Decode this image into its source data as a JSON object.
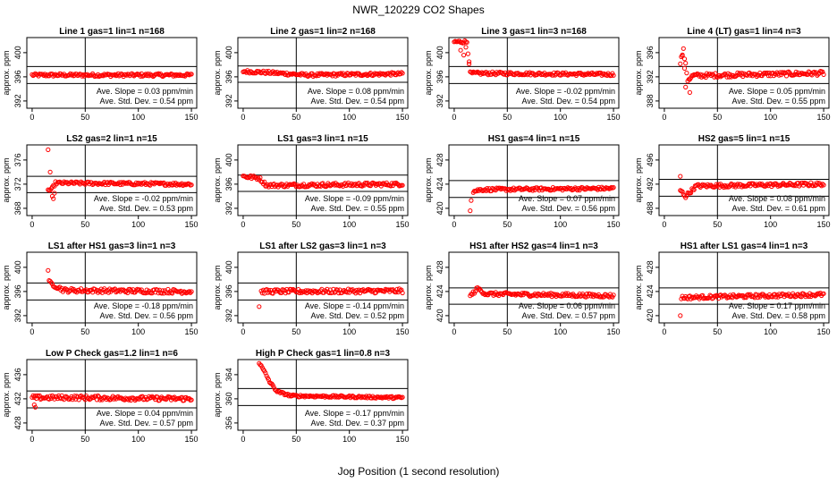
{
  "title": "NWR_120229  CO2 Shapes",
  "xlabel": "Jog Position (1 second resolution)",
  "colors": {
    "points": "#ff0000",
    "axes": "#000000"
  },
  "chart_data": [
    {
      "type": "scatter",
      "title": "Line 1 gas=1 lin=1 n=168",
      "ylabel": "approx. ppm",
      "xlim": [
        -5,
        155
      ],
      "xticks": [
        0,
        50,
        100,
        150
      ],
      "ylim": [
        390.8,
        402.5
      ],
      "yticks": [
        392,
        396,
        400
      ],
      "hlines": [
        397.7,
        394.9
      ],
      "vline": 50,
      "slope": "Ave. Slope = 0.03  ppm/min",
      "stddev": "Ave. Std. Dev. = 0.54  ppm",
      "series": [
        {
          "x_start": 0,
          "x_end": 150,
          "segments": [
            [
              0,
              396.3
            ],
            [
              150,
              396.3
            ]
          ],
          "jitter": 0.25,
          "spikes": []
        }
      ]
    },
    {
      "type": "scatter",
      "title": "Line 2 gas=1 lin=2 n=168",
      "ylabel": "approx. ppm",
      "xlim": [
        -5,
        155
      ],
      "xticks": [
        0,
        50,
        100,
        150
      ],
      "ylim": [
        390.8,
        402.5
      ],
      "yticks": [
        392,
        396,
        400
      ],
      "hlines": [
        397.8,
        395.1
      ],
      "vline": 50,
      "slope": "Ave. Slope = 0.08  ppm/min",
      "stddev": "Ave. Std. Dev. = 0.54  ppm",
      "series": [
        {
          "x_start": 0,
          "x_end": 150,
          "segments": [
            [
              0,
              396.9
            ],
            [
              25,
              396.7
            ],
            [
              60,
              396.3
            ],
            [
              150,
              396.5
            ]
          ],
          "jitter": 0.25,
          "spikes": []
        }
      ]
    },
    {
      "type": "scatter",
      "title": "Line 3 gas=1 lin=3 n=168",
      "ylabel": "approx. ppm",
      "xlim": [
        -5,
        155
      ],
      "xticks": [
        0,
        50,
        100,
        150
      ],
      "ylim": [
        390.8,
        402.5
      ],
      "yticks": [
        392,
        396,
        400
      ],
      "hlines": [
        397.7,
        394.9
      ],
      "vline": 50,
      "slope": "Ave. Slope = -0.02  ppm/min",
      "stddev": "Ave. Std. Dev. = 0.54  ppm",
      "series": [
        {
          "x_start": 0,
          "x_end": 150,
          "segments": [
            [
              0,
              401.8
            ],
            [
              12,
              401.8
            ],
            [
              15,
              396.6
            ],
            [
              150,
              396.4
            ]
          ],
          "jitter": 0.25,
          "spikes": [
            [
              6,
              400.4
            ],
            [
              9,
              399.6
            ],
            [
              11,
              400.9
            ],
            [
              14,
              398.5
            ]
          ]
        }
      ]
    },
    {
      "type": "scatter",
      "title": "Line 4 (LT) gas=1 lin=4 n=3",
      "ylabel": "approx. ppm",
      "xlim": [
        -5,
        155
      ],
      "xticks": [
        0,
        50,
        100,
        150
      ],
      "ylim": [
        386.8,
        398.5
      ],
      "yticks": [
        388,
        392,
        396
      ],
      "hlines": [
        393.7,
        390.9
      ],
      "vline": 50,
      "slope": "Ave. Slope = 0.05  ppm/min",
      "stddev": "Ave. Std. Dev. = 0.55  ppm",
      "series": [
        {
          "x_start": 15,
          "x_end": 150,
          "segments": [
            [
              15,
              394.5
            ],
            [
              18,
              396.4
            ],
            [
              22,
              391.5
            ],
            [
              27,
              392.2
            ],
            [
              150,
              392.6
            ]
          ],
          "jitter": 0.35,
          "spikes": [
            [
              20,
              390.3
            ],
            [
              24,
              389.4
            ],
            [
              17,
              395.5
            ],
            [
              19,
              393.4
            ]
          ]
        }
      ]
    },
    {
      "type": "scatter",
      "title": "LS2 gas=2 lin=1 n=15",
      "ylabel": "approx. ppm",
      "xlim": [
        -5,
        155
      ],
      "xticks": [
        0,
        50,
        100,
        150
      ],
      "ylim": [
        366.8,
        378.5
      ],
      "yticks": [
        368,
        372,
        376
      ],
      "hlines": [
        373.3,
        370.6
      ],
      "vline": 50,
      "slope": "Ave. Slope = -0.02  ppm/min",
      "stddev": "Ave. Std. Dev. = 0.53  ppm",
      "series": [
        {
          "x_start": 15,
          "x_end": 150,
          "segments": [
            [
              18,
              371.0
            ],
            [
              22,
              372.2
            ],
            [
              150,
              372.0
            ]
          ],
          "jitter": 0.25,
          "spikes": [
            [
              15,
              377.7
            ],
            [
              17,
              374.0
            ],
            [
              19,
              370.0
            ],
            [
              20,
              369.6
            ],
            [
              21,
              370.5
            ]
          ]
        }
      ]
    },
    {
      "type": "scatter",
      "title": "LS1 gas=3 lin=1 n=15",
      "ylabel": "approx. ppm",
      "xlim": [
        -5,
        155
      ],
      "xticks": [
        0,
        50,
        100,
        150
      ],
      "ylim": [
        390.8,
        402.5
      ],
      "yticks": [
        392,
        396,
        400
      ],
      "hlines": [
        397.5,
        394.8
      ],
      "vline": 50,
      "slope": "Ave. Slope = -0.09  ppm/min",
      "stddev": "Ave. Std. Dev. = 0.55  ppm",
      "series": [
        {
          "x_start": 0,
          "x_end": 150,
          "segments": [
            [
              0,
              397.3
            ],
            [
              15,
              397.0
            ],
            [
              22,
              395.8
            ],
            [
              150,
              396.0
            ]
          ],
          "jitter": 0.3,
          "spikes": []
        }
      ]
    },
    {
      "type": "scatter",
      "title": "HS1 gas=4 lin=1 n=15",
      "ylabel": "approx. ppm",
      "xlim": [
        -5,
        155
      ],
      "xticks": [
        0,
        50,
        100,
        150
      ],
      "ylim": [
        418.8,
        430.5
      ],
      "yticks": [
        420,
        424,
        428
      ],
      "hlines": [
        424.6,
        421.8
      ],
      "vline": 50,
      "slope": "Ave. Slope = 0.07  ppm/min",
      "stddev": "Ave. Std. Dev. = 0.56  ppm",
      "series": [
        {
          "x_start": 18,
          "x_end": 150,
          "segments": [
            [
              18,
              422.8
            ],
            [
              25,
              423.1
            ],
            [
              150,
              423.3
            ]
          ],
          "jitter": 0.25,
          "spikes": [
            [
              15,
              419.6
            ],
            [
              16,
              421.3
            ]
          ]
        }
      ]
    },
    {
      "type": "scatter",
      "title": "HS2 gas=5 lin=1 n=15",
      "ylabel": "approx. ppm",
      "xlim": [
        -5,
        155
      ],
      "xticks": [
        0,
        50,
        100,
        150
      ],
      "ylim": [
        486.8,
        498.5
      ],
      "yticks": [
        488,
        492,
        496
      ],
      "hlines": [
        492.8,
        490.0
      ],
      "vline": 50,
      "slope": "Ave. Slope = 0.08  ppm/min",
      "stddev": "Ave. Std. Dev. = 0.61  ppm",
      "series": [
        {
          "x_start": 15,
          "x_end": 150,
          "segments": [
            [
              15,
              491.0
            ],
            [
              20,
              490.0
            ],
            [
              30,
              491.7
            ],
            [
              150,
              492.0
            ]
          ],
          "jitter": 0.3,
          "spikes": [
            [
              15,
              493.3
            ]
          ]
        }
      ]
    },
    {
      "type": "scatter",
      "title": "LS1 after HS1 gas=3 lin=1 n=3",
      "ylabel": "approx. ppm",
      "xlim": [
        -5,
        155
      ],
      "xticks": [
        0,
        50,
        100,
        150
      ],
      "ylim": [
        390.8,
        402.5
      ],
      "yticks": [
        392,
        396,
        400
      ],
      "hlines": [
        397.4,
        394.6
      ],
      "vline": 50,
      "slope": "Ave. Slope = -0.18  ppm/min",
      "stddev": "Ave. Std. Dev. = 0.56  ppm",
      "series": [
        {
          "x_start": 16,
          "x_end": 150,
          "segments": [
            [
              16,
              397.5
            ],
            [
              30,
              396.2
            ],
            [
              150,
              396.0
            ]
          ],
          "jitter": 0.35,
          "spikes": [
            [
              15,
              399.5
            ]
          ]
        }
      ]
    },
    {
      "type": "scatter",
      "title": "LS1 after LS2 gas=3 lin=1 n=3",
      "ylabel": "approx. ppm",
      "xlim": [
        -5,
        155
      ],
      "xticks": [
        0,
        50,
        100,
        150
      ],
      "ylim": [
        390.8,
        402.5
      ],
      "yticks": [
        392,
        396,
        400
      ],
      "hlines": [
        397.4,
        394.6
      ],
      "vline": 50,
      "slope": "Ave. Slope = -0.14  ppm/min",
      "stddev": "Ave. Std. Dev. = 0.52  ppm",
      "series": [
        {
          "x_start": 17,
          "x_end": 150,
          "segments": [
            [
              17,
              396.0
            ],
            [
              150,
              396.1
            ]
          ],
          "jitter": 0.35,
          "spikes": [
            [
              15,
              393.5
            ]
          ]
        }
      ]
    },
    {
      "type": "scatter",
      "title": "HS1 after HS2 gas=4 lin=1 n=3",
      "ylabel": "approx. ppm",
      "xlim": [
        -5,
        155
      ],
      "xticks": [
        0,
        50,
        100,
        150
      ],
      "ylim": [
        418.8,
        430.5
      ],
      "yticks": [
        420,
        424,
        428
      ],
      "hlines": [
        424.6,
        421.9
      ],
      "vline": 50,
      "slope": "Ave. Slope = 0.06  ppm/min",
      "stddev": "Ave. Std. Dev. = 0.57  ppm",
      "series": [
        {
          "x_start": 15,
          "x_end": 150,
          "segments": [
            [
              15,
              423.2
            ],
            [
              22,
              424.5
            ],
            [
              30,
              423.6
            ],
            [
              150,
              423.3
            ]
          ],
          "jitter": 0.3,
          "spikes": []
        }
      ]
    },
    {
      "type": "scatter",
      "title": "HS1 after LS1 gas=4 lin=1 n=3",
      "ylabel": "approx. ppm",
      "xlim": [
        -5,
        155
      ],
      "xticks": [
        0,
        50,
        100,
        150
      ],
      "ylim": [
        418.8,
        430.5
      ],
      "yticks": [
        420,
        424,
        428
      ],
      "hlines": [
        424.6,
        421.9
      ],
      "vline": 50,
      "slope": "Ave. Slope = 0.17  ppm/min",
      "stddev": "Ave. Std. Dev. = 0.58  ppm",
      "series": [
        {
          "x_start": 16,
          "x_end": 150,
          "segments": [
            [
              16,
              423.0
            ],
            [
              150,
              423.5
            ]
          ],
          "jitter": 0.3,
          "spikes": [
            [
              15,
              420.0
            ]
          ]
        }
      ]
    },
    {
      "type": "scatter",
      "title": "Low P Check gas=1.2 lin=1 n=6",
      "ylabel": "approx. ppm",
      "xlim": [
        -5,
        155
      ],
      "xticks": [
        0,
        50,
        100,
        150
      ],
      "ylim": [
        426.8,
        438.5
      ],
      "yticks": [
        428,
        432,
        436
      ],
      "hlines": [
        433.3,
        430.5
      ],
      "vline": 50,
      "slope": "Ave. Slope = 0.04  ppm/min",
      "stddev": "Ave. Std. Dev. = 0.57  ppm",
      "series": [
        {
          "x_start": 0,
          "x_end": 150,
          "segments": [
            [
              0,
              432.2
            ],
            [
              40,
              432.2
            ],
            [
              150,
              432.0
            ]
          ],
          "jitter": 0.35,
          "spikes": [
            [
              3,
              430.6
            ],
            [
              2,
              431.0
            ]
          ]
        }
      ]
    },
    {
      "type": "scatter",
      "title": "High P Check gas=1 lin=0.8 n=3",
      "ylabel": "approx. ppm",
      "xlim": [
        -5,
        155
      ],
      "xticks": [
        0,
        50,
        100,
        150
      ],
      "ylim": [
        354.8,
        366.5
      ],
      "yticks": [
        356,
        360,
        364
      ],
      "hlines": [
        361.7,
        358.9
      ],
      "vline": 50,
      "slope": "Ave. Slope = -0.17  ppm/min",
      "stddev": "Ave. Std. Dev. = 0.37  ppm",
      "series": [
        {
          "x_start": 15,
          "x_end": 150,
          "segments": [
            [
              15,
              366.0
            ],
            [
              20,
              364.5
            ],
            [
              25,
              362.8
            ],
            [
              32,
              361.2
            ],
            [
              45,
              360.5
            ],
            [
              150,
              360.2
            ]
          ],
          "jitter": 0.18,
          "spikes": []
        }
      ]
    }
  ]
}
